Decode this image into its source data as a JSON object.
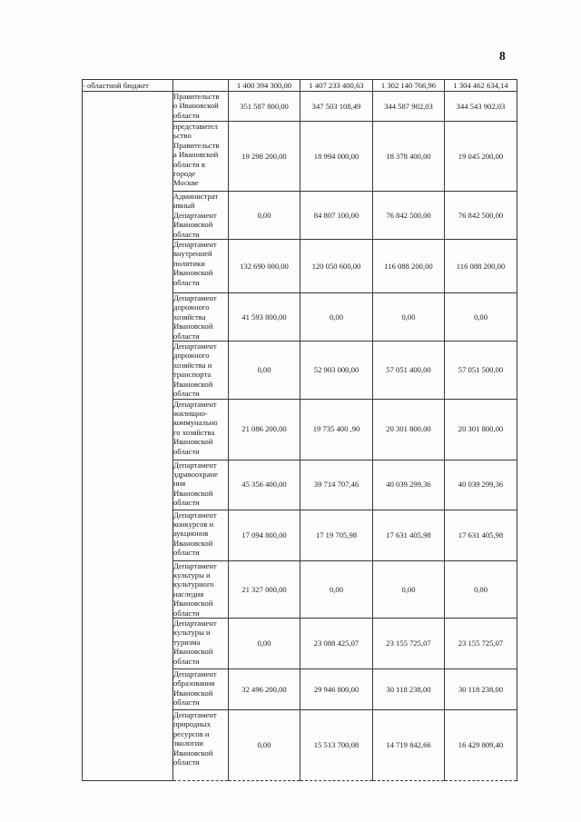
{
  "page": {
    "number": "8"
  },
  "table": {
    "top_row": {
      "label": "- областной бюджет",
      "values": [
        "1 400 394 300,00",
        "1 407 233 400,63",
        "1 302 140 766,96",
        "1 304 462 634,14"
      ]
    },
    "rows": [
      {
        "name": "Правительств\nо Ивановской\nобласти",
        "values": [
          "351 587 800,00",
          "347 503 108,49",
          "344 587 902,03",
          "344 543 902,03"
        ]
      },
      {
        "name": "представител\nьство\nПравительств\nа Ивановской\nобласти в\nгороде\nМоскве",
        "values": [
          "19 298 200,00",
          "18 994 000,00",
          "18 378 400,00",
          "19 045 200,00"
        ]
      },
      {
        "name": "Администрат\nивный\nДепартамент\nИвановской\nобласти",
        "values": [
          "0,00",
          "84 807 100,00",
          "76 842 500,00",
          "76 842 500,00"
        ]
      },
      {
        "name": "Департамент\nвнутренней\nполитики\nИвановской\nобласти",
        "values": [
          "132 690 000,00",
          "120 050 600,00",
          "116 088 200,00",
          "116 088 200,00"
        ]
      },
      {
        "name": "Департамент\nдорожного\nхозяйства\nИвановской\nобласти",
        "values": [
          "41 593 800,00",
          "0,00",
          "0,00",
          "0,00"
        ]
      },
      {
        "name": "Департамент\nдорожного\nхозяйства и\nтранспорта\nИвановской\nобласти",
        "values": [
          "0,00",
          "52 903 000,00",
          "57 051 400,00",
          "57 051 500,00"
        ]
      },
      {
        "name": "Департамент\nжилищно-\nкоммунально\nго хозяйства\nИвановской\nобласти",
        "values": [
          "21 086 200,00",
          "19 735 400 ,90",
          "20 301 800,00",
          "20 301 800,00"
        ]
      },
      {
        "name": "Департамент\nздравоохране\nния\nИвановской\nобласти",
        "values": [
          "45 356 400,00",
          "39 714 707,46",
          "40 039 299,36",
          "40 039 299,36"
        ]
      },
      {
        "name": "Департамент\nконкурсов и\nаукционов\nИвановской\nобласти",
        "values": [
          "17 094 800,00",
          "17 19 705,98",
          "17 631 405,98",
          "17 631 405,98"
        ]
      },
      {
        "name": "Департамент\nкультуры и\nкультурного\nнаследия\nИвановской\nобласти",
        "values": [
          "21 327 000,00",
          "0,00",
          "0,00",
          "0,00"
        ]
      },
      {
        "name": "Департамент\nкультуры и\nтуризма\nИвановской\nобласти",
        "values": [
          "0,00",
          "23 088 425,07",
          "23 155 725,07",
          "23 155 725,07"
        ]
      },
      {
        "name": "Департамент\nобразования\nИвановской\nобласти",
        "values": [
          "32 496 200,00",
          "29 946 800,00",
          "30 118 238,00",
          "30 118 238,00"
        ]
      },
      {
        "name": "Департамент\nприродных\nресурсов и\nэкологии\nИвановской\nобласти",
        "values": [
          "0,00",
          "15 513 700,08",
          "14 719 842,66",
          "16 429 809,40"
        ]
      }
    ]
  }
}
